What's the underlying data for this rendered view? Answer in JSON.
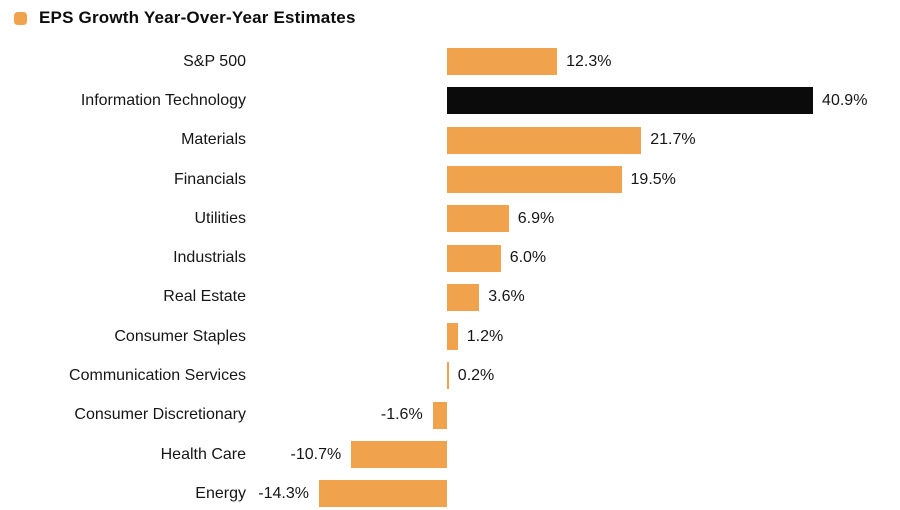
{
  "chart_data": {
    "type": "bar",
    "orientation": "horizontal",
    "title": "EPS Growth Year-Over-Year Estimates",
    "legend": [
      {
        "label": "EPS Growth Year-Over-Year Estimates",
        "color": "#F0A24C"
      }
    ],
    "categories": [
      "S&P 500",
      "Information Technology",
      "Materials",
      "Financials",
      "Utilities",
      "Industrials",
      "Real Estate",
      "Consumer Staples",
      "Communication Services",
      "Consumer Discretionary",
      "Health Care",
      "Energy"
    ],
    "values": [
      12.3,
      40.9,
      21.7,
      19.5,
      6.9,
      6.0,
      3.6,
      1.2,
      0.2,
      -1.6,
      -10.7,
      -14.3
    ],
    "value_labels": [
      "12.3%",
      "40.9%",
      "21.7%",
      "19.5%",
      "6.9%",
      "6.0%",
      "3.6%",
      "1.2%",
      "0.2%",
      "-1.6%",
      "-10.7%",
      "-14.3%"
    ],
    "highlight_category": "Information Technology",
    "bar_color": "#F0A24C",
    "highlight_color": "#0B0B0B",
    "background_color": "#FFFFFF",
    "text_color": "#161616",
    "xlim": [
      -16,
      46
    ],
    "grid": false,
    "axis_labels_shown": false
  }
}
